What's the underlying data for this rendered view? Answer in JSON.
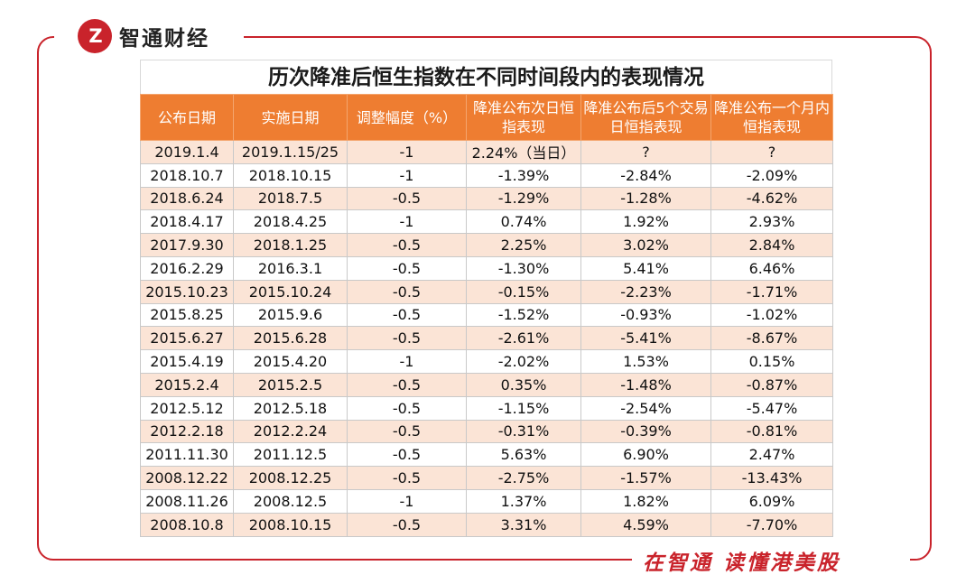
{
  "brand": {
    "logo_mark": "Z",
    "name": "智通财经",
    "slogan": "在智通 读懂港美股",
    "watermark": "智通财经",
    "accent_color": "#c9232b",
    "header_color": "#ee7d31",
    "stripe_color": "#fbe4d6"
  },
  "table": {
    "title": "历次降准后恒生指数在不同时间段内的表现情况",
    "headers": [
      "公布日期",
      "实施日期",
      "调整幅度（%）",
      "降准公布次日恒指表现",
      "降准公布后5个交易日恒指表现",
      "降准公布一个月内恒指表现"
    ],
    "rows": [
      [
        "2019.1.4",
        "2019.1.15/25",
        "-1",
        "2.24%（当日）",
        "?",
        "?"
      ],
      [
        "2018.10.7",
        "2018.10.15",
        "-1",
        "-1.39%",
        "-2.84%",
        "-2.09%"
      ],
      [
        "2018.6.24",
        "2018.7.5",
        "-0.5",
        "-1.29%",
        "-1.28%",
        "-4.62%"
      ],
      [
        "2018.4.17",
        "2018.4.25",
        "-1",
        "0.74%",
        "1.92%",
        "2.93%"
      ],
      [
        "2017.9.30",
        "2018.1.25",
        "-0.5",
        "2.25%",
        "3.02%",
        "2.84%"
      ],
      [
        "2016.2.29",
        "2016.3.1",
        "-0.5",
        "-1.30%",
        "5.41%",
        "6.46%"
      ],
      [
        "2015.10.23",
        "2015.10.24",
        "-0.5",
        "-0.15%",
        "-2.23%",
        "-1.71%"
      ],
      [
        "2015.8.25",
        "2015.9.6",
        "-0.5",
        "-1.52%",
        "-0.93%",
        "-1.02%"
      ],
      [
        "2015.6.27",
        "2015.6.28",
        "-0.5",
        "-2.61%",
        "-5.41%",
        "-8.67%"
      ],
      [
        "2015.4.19",
        "2015.4.20",
        "-1",
        "-2.02%",
        "1.53%",
        "0.15%"
      ],
      [
        "2015.2.4",
        "2015.2.5",
        "-0.5",
        "0.35%",
        "-1.48%",
        "-0.87%"
      ],
      [
        "2012.5.12",
        "2012.5.18",
        "-0.5",
        "-1.15%",
        "-2.54%",
        "-5.47%"
      ],
      [
        "2012.2.18",
        "2012.2.24",
        "-0.5",
        "-0.31%",
        "-0.39%",
        "-0.81%"
      ],
      [
        "2011.11.30",
        "2011.12.5",
        "-0.5",
        "5.63%",
        "6.90%",
        "2.47%"
      ],
      [
        "2008.12.22",
        "2008.12.25",
        "-0.5",
        "-2.75%",
        "-1.57%",
        "-13.43%"
      ],
      [
        "2008.11.26",
        "2008.12.5",
        "-1",
        "1.37%",
        "1.82%",
        "6.09%"
      ],
      [
        "2008.10.8",
        "2008.10.15",
        "-0.5",
        "3.31%",
        "4.59%",
        "-7.70%"
      ]
    ]
  }
}
